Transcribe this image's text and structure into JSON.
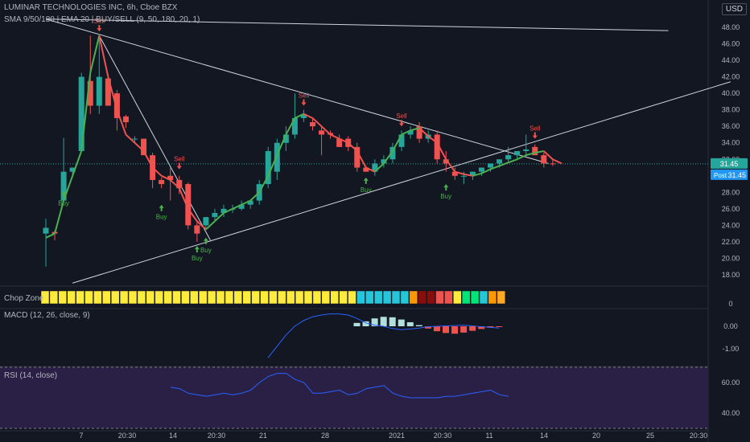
{
  "header": {
    "title": "LUMINAR TECHNOLOGIES INC, 6h, Cboe BZX",
    "indicators": "SMA 9/50/180 | EMA 20 | BUY/SELL (9, 50, 180, 20, 1)",
    "currency": "USD"
  },
  "price_badges": {
    "last": "31.45",
    "post_label": "Post",
    "post_value": "31.45"
  },
  "panes": {
    "chop_zone": "Chop Zone",
    "macd": "MACD (12, 26, close, 9)",
    "rsi": "RSI (14, close)"
  },
  "colors": {
    "up": "#26a69a",
    "down": "#ef5350",
    "signal_up": "#4caf50",
    "signal_down": "#ef5350",
    "rsi_band": "#2a1f45",
    "macd": "#2962ff",
    "background": "#131722"
  },
  "chart_data": [
    {
      "type": "candlestick",
      "name": "price",
      "y_scale": [
        18,
        48
      ],
      "y_ticks": [
        "48.00",
        "46.00",
        "44.00",
        "42.00",
        "40.00",
        "38.00",
        "36.00",
        "34.00",
        "32.00",
        "30.00",
        "28.00",
        "26.00",
        "24.00",
        "22.00",
        "20.00",
        "18.00"
      ],
      "x_ticks": [
        "7",
        "20:30",
        "14",
        "20:30",
        "21",
        "28",
        "2021",
        "20:30",
        "11",
        "14",
        "20",
        "25",
        "20:30"
      ],
      "candles": [
        {
          "o": 23.0,
          "h": 24.8,
          "l": 19.0,
          "c": 23.7
        },
        {
          "o": 23.2,
          "h": 23.4,
          "l": 22.2,
          "c": 23.0
        },
        {
          "o": 27.0,
          "h": 34.6,
          "l": 27.0,
          "c": 30.5
        },
        {
          "o": 30.5,
          "h": 31.0,
          "l": 30.0,
          "c": 31.0
        },
        {
          "o": 33.0,
          "h": 42.5,
          "l": 33.0,
          "c": 42.0
        },
        {
          "o": 41.5,
          "h": 47.0,
          "l": 37.5,
          "c": 38.5
        },
        {
          "o": 38.5,
          "h": 47.2,
          "l": 37.5,
          "c": 42.0
        },
        {
          "o": 41.8,
          "h": 42.0,
          "l": 38.5,
          "c": 38.5
        },
        {
          "o": 40.0,
          "h": 40.4,
          "l": 35.5,
          "c": 37.0
        },
        {
          "o": 37.2,
          "h": 37.4,
          "l": 35.8,
          "c": 36.5
        },
        {
          "o": 34.5,
          "h": 34.8,
          "l": 34.0,
          "c": 34.5
        },
        {
          "o": 34.5,
          "h": 34.5,
          "l": 32.5,
          "c": 32.5
        },
        {
          "o": 32.5,
          "h": 32.8,
          "l": 28.5,
          "c": 29.5
        },
        {
          "o": 29.5,
          "h": 29.8,
          "l": 28.5,
          "c": 29.0
        },
        {
          "o": 30.0,
          "h": 31.0,
          "l": 27.0,
          "c": 29.5
        },
        {
          "o": 29.5,
          "h": 30.0,
          "l": 27.8,
          "c": 28.5
        },
        {
          "o": 29.0,
          "h": 29.2,
          "l": 23.5,
          "c": 24.0
        },
        {
          "o": 24.0,
          "h": 24.5,
          "l": 22.0,
          "c": 23.0
        },
        {
          "o": 24.0,
          "h": 25.0,
          "l": 23.5,
          "c": 25.0
        },
        {
          "o": 25.0,
          "h": 26.0,
          "l": 24.5,
          "c": 25.5
        },
        {
          "o": 25.5,
          "h": 26.5,
          "l": 25.0,
          "c": 26.0
        },
        {
          "o": 26.0,
          "h": 26.5,
          "l": 25.5,
          "c": 26.0
        },
        {
          "o": 26.0,
          "h": 27.0,
          "l": 25.8,
          "c": 26.5
        },
        {
          "o": 26.5,
          "h": 27.0,
          "l": 26.0,
          "c": 27.0
        },
        {
          "o": 27.0,
          "h": 29.5,
          "l": 26.5,
          "c": 29.0
        },
        {
          "o": 29.0,
          "h": 33.5,
          "l": 28.5,
          "c": 33.0
        },
        {
          "o": 30.5,
          "h": 34.5,
          "l": 29.5,
          "c": 34.0
        },
        {
          "o": 34.0,
          "h": 36.0,
          "l": 33.0,
          "c": 35.0
        },
        {
          "o": 35.0,
          "h": 40.0,
          "l": 34.5,
          "c": 37.0
        },
        {
          "o": 37.0,
          "h": 38.0,
          "l": 36.5,
          "c": 37.5
        },
        {
          "o": 36.5,
          "h": 37.0,
          "l": 35.5,
          "c": 36.0
        },
        {
          "o": 35.5,
          "h": 36.0,
          "l": 32.5,
          "c": 35.0
        },
        {
          "o": 35.2,
          "h": 35.5,
          "l": 34.5,
          "c": 35.0
        },
        {
          "o": 34.5,
          "h": 35.0,
          "l": 33.5,
          "c": 33.5
        },
        {
          "o": 34.5,
          "h": 34.8,
          "l": 33.0,
          "c": 33.5
        },
        {
          "o": 33.5,
          "h": 34.0,
          "l": 30.5,
          "c": 31.0
        },
        {
          "o": 31.0,
          "h": 31.2,
          "l": 30.5,
          "c": 30.5
        },
        {
          "o": 30.5,
          "h": 32.0,
          "l": 30.0,
          "c": 31.5
        },
        {
          "o": 31.5,
          "h": 32.5,
          "l": 31.0,
          "c": 32.0
        },
        {
          "o": 32.0,
          "h": 34.0,
          "l": 31.5,
          "c": 33.5
        },
        {
          "o": 33.5,
          "h": 35.5,
          "l": 33.0,
          "c": 35.0
        },
        {
          "o": 35.0,
          "h": 36.0,
          "l": 34.5,
          "c": 35.5
        },
        {
          "o": 36.0,
          "h": 36.5,
          "l": 34.0,
          "c": 34.5
        },
        {
          "o": 34.5,
          "h": 35.5,
          "l": 34.0,
          "c": 35.0
        },
        {
          "o": 35.0,
          "h": 35.5,
          "l": 31.5,
          "c": 32.0
        },
        {
          "o": 32.0,
          "h": 33.0,
          "l": 30.5,
          "c": 31.5
        },
        {
          "o": 30.5,
          "h": 31.0,
          "l": 29.5,
          "c": 30.0
        },
        {
          "o": 30.0,
          "h": 30.5,
          "l": 29.0,
          "c": 30.0
        },
        {
          "o": 30.0,
          "h": 30.5,
          "l": 29.5,
          "c": 30.5
        },
        {
          "o": 30.5,
          "h": 31.0,
          "l": 30.0,
          "c": 31.0
        },
        {
          "o": 31.0,
          "h": 31.5,
          "l": 30.5,
          "c": 31.5
        },
        {
          "o": 31.5,
          "h": 32.0,
          "l": 31.0,
          "c": 32.0
        },
        {
          "o": 32.0,
          "h": 33.5,
          "l": 31.5,
          "c": 32.5
        },
        {
          "o": 32.5,
          "h": 33.0,
          "l": 32.0,
          "c": 33.0
        },
        {
          "o": 33.0,
          "h": 35.0,
          "l": 32.5,
          "c": 33.2
        },
        {
          "o": 33.5,
          "h": 33.8,
          "l": 32.5,
          "c": 32.5
        },
        {
          "o": 32.5,
          "h": 32.8,
          "l": 31.0,
          "c": 31.5
        },
        {
          "o": 31.5,
          "h": 32.0,
          "l": 31.2,
          "c": 31.45
        }
      ],
      "ma_line": [
        22.5,
        23.0,
        27.0,
        30.0,
        33.0,
        42.5,
        47.0,
        42.0,
        38.0,
        35.0,
        34.0,
        33.0,
        31.0,
        30.0,
        29.5,
        28.5,
        26.0,
        24.5,
        23.5,
        24.5,
        25.5,
        26.0,
        26.5,
        27.0,
        28.0,
        30.0,
        32.5,
        35.0,
        37.0,
        37.5,
        37.0,
        36.0,
        35.0,
        34.5,
        34.0,
        33.0,
        31.0,
        30.5,
        31.5,
        33.0,
        35.0,
        35.5,
        35.8,
        34.8,
        34.0,
        32.0,
        30.5,
        30.2,
        30.0,
        30.3,
        30.8,
        31.2,
        31.6,
        32.0,
        32.5,
        32.8,
        33.0,
        32.0,
        31.5
      ],
      "signals": [
        {
          "label": "Buy",
          "i": 2,
          "price": 28.2
        },
        {
          "label": "Sell",
          "i": 6,
          "price": 47.5
        },
        {
          "label": "Buy",
          "i": 13,
          "price": 26.5
        },
        {
          "label": "Sell",
          "i": 15,
          "price": 30.8
        },
        {
          "label": "Buy",
          "i": 18,
          "price": 22.5
        },
        {
          "label": "Buy",
          "i": 17,
          "price": 21.5
        },
        {
          "label": "Sell",
          "i": 29,
          "price": 38.5
        },
        {
          "label": "Buy",
          "i": 36,
          "price": 29.8
        },
        {
          "label": "Sell",
          "i": 40,
          "price": 36.0
        },
        {
          "label": "Buy",
          "i": 45,
          "price": 29.0
        },
        {
          "label": "Sell",
          "i": 55,
          "price": 34.5
        }
      ]
    },
    {
      "type": "heatmap",
      "name": "Chop Zone",
      "colors": [
        "#ffeb3b",
        "#ffeb3b",
        "#ffeb3b",
        "#ffeb3b",
        "#ffeb3b",
        "#ffeb3b",
        "#ffeb3b",
        "#ffeb3b",
        "#ffeb3b",
        "#ffeb3b",
        "#ffeb3b",
        "#ffeb3b",
        "#ffeb3b",
        "#ffeb3b",
        "#ffeb3b",
        "#ffeb3b",
        "#ffeb3b",
        "#ffeb3b",
        "#ffeb3b",
        "#ffeb3b",
        "#ffeb3b",
        "#ffeb3b",
        "#ffeb3b",
        "#ffeb3b",
        "#ffeb3b",
        "#ffeb3b",
        "#ffeb3b",
        "#ffeb3b",
        "#ffeb3b",
        "#ffeb3b",
        "#ffeb3b",
        "#ffeb3b",
        "#ffeb3b",
        "#ffeb3b",
        "#ffeb3b",
        "#ffeb3b",
        "#26c6da",
        "#26c6da",
        "#26c6da",
        "#26c6da",
        "#26c6da",
        "#26c6da",
        "#ff9800",
        "#880e0e",
        "#880e0e",
        "#ef5350",
        "#ef5350",
        "#ffeb3b",
        "#00e676",
        "#00e676",
        "#26c6da",
        "#ff9800",
        "#ffa726"
      ],
      "y_ticks": [
        "0"
      ]
    },
    {
      "type": "bar",
      "name": "MACD",
      "y_ticks": [
        "0.00",
        "-1.00"
      ],
      "histogram": [
        0,
        0,
        0,
        0,
        0,
        0,
        0,
        0,
        0,
        0,
        0,
        0,
        0,
        0,
        0,
        0,
        0,
        0,
        0,
        0,
        0,
        0,
        0,
        0,
        0,
        0,
        0,
        0,
        0,
        0,
        0.15,
        0.22,
        0.35,
        0.42,
        0.4,
        0.3,
        0.18,
        0.05,
        -0.1,
        -0.22,
        -0.3,
        -0.33,
        -0.28,
        -0.2,
        -0.12,
        -0.06,
        -0.02
      ],
      "macd_line": [
        null,
        null,
        null,
        null,
        null,
        null,
        null,
        null,
        null,
        null,
        null,
        null,
        null,
        null,
        null,
        null,
        null,
        null,
        null,
        null,
        -1.4,
        -0.9,
        -0.4,
        0.0,
        0.25,
        0.42,
        0.5,
        0.55,
        0.55,
        0.5,
        0.35,
        0.15,
        0.05,
        0.0,
        -0.1,
        -0.15,
        -0.12,
        -0.08,
        -0.02,
        0.0,
        0.02,
        0.03,
        0.05,
        0.02,
        -0.02,
        -0.05,
        -0.08
      ]
    },
    {
      "type": "line",
      "name": "RSI",
      "y_ticks": [
        "60.00",
        "40.00"
      ],
      "values": [
        57,
        56,
        53,
        52,
        51,
        52,
        53,
        52,
        53,
        55,
        60,
        64,
        66,
        66,
        62,
        60,
        53,
        53,
        54,
        55,
        52,
        53,
        56,
        57,
        58,
        53,
        51,
        50,
        50,
        50,
        50,
        51,
        51,
        52,
        53,
        54,
        55,
        52,
        51
      ]
    }
  ]
}
